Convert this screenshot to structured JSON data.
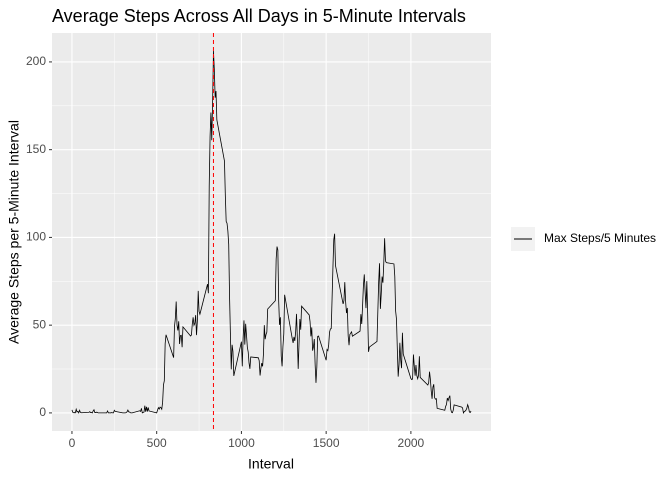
{
  "chart_data": {
    "type": "line",
    "title": "Average Steps Across All Days in 5-Minute Intervals",
    "x_label": "Interval",
    "y_label": "Average Steps per 5-Minute Interval",
    "x": [
      0,
      5,
      10,
      15,
      20,
      25,
      30,
      35,
      40,
      45,
      50,
      55,
      100,
      105,
      110,
      115,
      120,
      125,
      130,
      135,
      140,
      145,
      150,
      155,
      200,
      205,
      210,
      215,
      220,
      225,
      230,
      235,
      240,
      245,
      250,
      255,
      300,
      305,
      310,
      315,
      320,
      325,
      330,
      335,
      340,
      345,
      350,
      355,
      400,
      405,
      410,
      415,
      420,
      425,
      430,
      435,
      440,
      445,
      450,
      455,
      500,
      505,
      510,
      515,
      520,
      525,
      530,
      535,
      540,
      545,
      550,
      555,
      600,
      605,
      610,
      615,
      620,
      625,
      630,
      635,
      640,
      645,
      650,
      655,
      700,
      705,
      710,
      715,
      720,
      725,
      730,
      735,
      740,
      745,
      750,
      755,
      800,
      805,
      810,
      815,
      820,
      825,
      830,
      835,
      840,
      845,
      850,
      855,
      900,
      905,
      910,
      915,
      920,
      925,
      930,
      935,
      940,
      945,
      950,
      955,
      1000,
      1005,
      1010,
      1015,
      1020,
      1025,
      1030,
      1035,
      1040,
      1045,
      1050,
      1055,
      1100,
      1105,
      1110,
      1115,
      1120,
      1125,
      1130,
      1135,
      1140,
      1145,
      1150,
      1155,
      1200,
      1205,
      1210,
      1215,
      1220,
      1225,
      1230,
      1235,
      1240,
      1245,
      1250,
      1255,
      1300,
      1305,
      1310,
      1315,
      1320,
      1325,
      1330,
      1335,
      1340,
      1345,
      1350,
      1355,
      1400,
      1405,
      1410,
      1415,
      1420,
      1425,
      1430,
      1435,
      1440,
      1445,
      1450,
      1455,
      1500,
      1505,
      1510,
      1515,
      1520,
      1525,
      1530,
      1535,
      1540,
      1545,
      1550,
      1555,
      1600,
      1605,
      1610,
      1615,
      1620,
      1625,
      1630,
      1635,
      1640,
      1645,
      1650,
      1655,
      1700,
      1705,
      1710,
      1715,
      1720,
      1725,
      1730,
      1735,
      1740,
      1745,
      1750,
      1755,
      1800,
      1805,
      1810,
      1815,
      1820,
      1825,
      1830,
      1835,
      1840,
      1845,
      1850,
      1855,
      1900,
      1905,
      1910,
      1915,
      1920,
      1925,
      1930,
      1935,
      1940,
      1945,
      1950,
      1955,
      2000,
      2005,
      2010,
      2015,
      2020,
      2025,
      2030,
      2035,
      2040,
      2045,
      2050,
      2055,
      2100,
      2105,
      2110,
      2115,
      2120,
      2125,
      2130,
      2135,
      2140,
      2145,
      2150,
      2155,
      2200,
      2205,
      2210,
      2215,
      2220,
      2225,
      2230,
      2235,
      2240,
      2245,
      2250,
      2255,
      2300,
      2305,
      2310,
      2315,
      2320,
      2325,
      2330,
      2335,
      2340,
      2345,
      2350,
      2355
    ],
    "series": [
      {
        "name": "Max Steps/5 Minutes",
        "color": "#000000",
        "values": [
          1.7,
          0.3,
          0.1,
          0.2,
          0.1,
          2.1,
          0.5,
          0.9,
          0,
          1.5,
          0.3,
          0.1,
          0.3,
          0.7,
          0.2,
          0.3,
          0,
          1.1,
          1.8,
          0.2,
          0.2,
          0.4,
          0.3,
          0,
          0,
          0,
          1.1,
          0,
          0,
          0.1,
          0,
          0.2,
          0,
          0,
          1.5,
          0.9,
          0,
          0,
          0,
          0,
          0.2,
          0.6,
          1.6,
          0.6,
          0.5,
          0.1,
          0,
          0,
          1.2,
          0.9,
          2.6,
          0,
          0.3,
          0.4,
          4.1,
          0.7,
          3.5,
          0.8,
          3.1,
          1.1,
          0,
          1.6,
          3,
          2.2,
          3.3,
          3,
          2.1,
          6.1,
          16,
          18.3,
          39.5,
          44.5,
          31.5,
          49.3,
          53.8,
          63.5,
          50,
          47,
          52.2,
          39.3,
          44,
          44.2,
          37.4,
          49,
          43.8,
          44.4,
          50.5,
          54.5,
          49.9,
          51,
          55.7,
          44.3,
          52.3,
          69.5,
          57.8,
          56.2,
          73.4,
          68.2,
          129.4,
          157.5,
          171.2,
          155.4,
          177.3,
          206.2,
          195.9,
          179.6,
          183.4,
          167,
          143.5,
          124,
          109.1,
          108.1,
          103.7,
          96,
          66.2,
          45.2,
          24.8,
          38.8,
          35,
          21.1,
          40.6,
          26.5,
          42.4,
          52.7,
          38.9,
          50.8,
          44.3,
          37.4,
          34.7,
          28.3,
          25.1,
          31.9,
          31.4,
          29.7,
          21.3,
          25.5,
          28.4,
          26.5,
          33.4,
          50,
          42,
          44.6,
          46,
          59.2,
          63.9,
          87.7,
          94.8,
          92.8,
          63.4,
          50.2,
          54.5,
          32.4,
          26.5,
          37.7,
          45.1,
          67.3,
          42.3,
          39.9,
          43.3,
          41,
          46.2,
          56.4,
          42.8,
          25.1,
          40,
          53.5,
          47.4,
          60.8,
          55.8,
          52,
          43.6,
          48.7,
          35.5,
          37.6,
          42.1,
          27.5,
          17.1,
          26.1,
          43.6,
          43.8,
          30,
          36.1,
          35.5,
          38.8,
          46,
          47.8,
          48.1,
          65.3,
          82.9,
          98.7,
          102.1,
          84,
          62.1,
          64.1,
          74.5,
          63.2,
          56.9,
          59.8,
          43.9,
          38.6,
          44.7,
          45.5,
          46.2,
          43.7,
          46.6,
          56.3,
          50.7,
          61.2,
          72.7,
          78.9,
          68.9,
          59.7,
          75.1,
          56.5,
          34.8,
          37.5,
          40.7,
          58,
          74.7,
          85.3,
          59.3,
          67.8,
          77.7,
          74.2,
          85.3,
          99.5,
          86.6,
          85.6,
          84.9,
          77.8,
          58,
          53.4,
          36.3,
          20.7,
          27.4,
          40,
          30.2,
          25.5,
          45.7,
          33.5,
          19.6,
          19,
          19.3,
          33.3,
          26.8,
          21.2,
          27.3,
          21.3,
          19.5,
          21.3,
          32.3,
          20.2,
          15.9,
          17.2,
          23.5,
          19.2,
          12.5,
          8,
          14.7,
          16.3,
          8.7,
          7.8,
          8.1,
          2.6,
          1.5,
          3.7,
          4.8,
          8.5,
          7.1,
          8.7,
          9.8,
          2.2,
          0.3,
          0.1,
          1.6,
          4.6,
          3.3,
          2.8,
          0,
          0.8,
          1,
          1.6,
          2.6,
          4.7,
          3.3,
          0.6,
          0.2,
          1.1
        ]
      }
    ],
    "vline": {
      "x": 835,
      "color": "#ff0000"
    },
    "xlim": [
      -117.75,
      2472.75
    ],
    "xticks": [
      0,
      500,
      1000,
      1500,
      2000
    ],
    "ylim": [
      -10.31,
      216.48
    ],
    "yticks": [
      0,
      50,
      100,
      150,
      200
    ],
    "grid": true,
    "legend_position": "right"
  }
}
